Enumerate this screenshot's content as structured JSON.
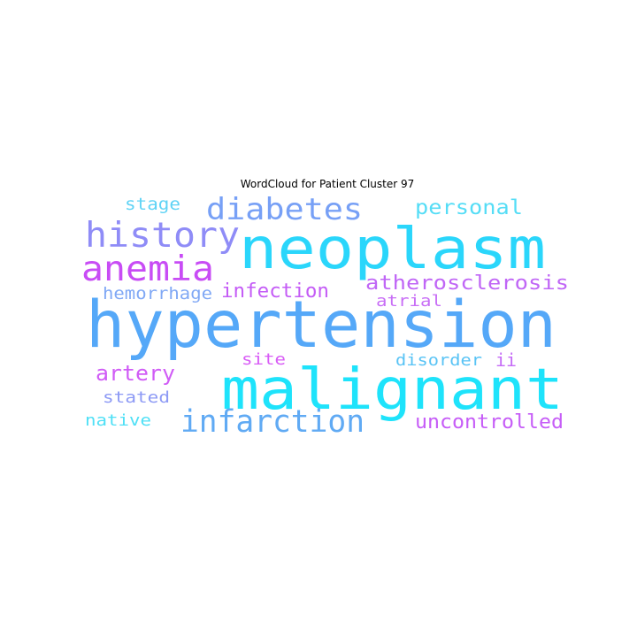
{
  "title": "WordCloud for Patient Cluster 97",
  "words": [
    {
      "text": "hypertension",
      "color": "#55a8f8"
    },
    {
      "text": "neoplasm",
      "color": "#2ad6fb"
    },
    {
      "text": "malignant",
      "color": "#1ee3fb"
    },
    {
      "text": "history",
      "color": "#8f8cf7"
    },
    {
      "text": "diabetes",
      "color": "#77a0f6"
    },
    {
      "text": "anemia",
      "color": "#c84cf5"
    },
    {
      "text": "infarction",
      "color": "#60aaf4"
    },
    {
      "text": "personal",
      "color": "#55ddf6"
    },
    {
      "text": "atherosclerosis",
      "color": "#c066f6"
    },
    {
      "text": "infection",
      "color": "#c45cf6"
    },
    {
      "text": "artery",
      "color": "#d05cf6"
    },
    {
      "text": "uncontrolled",
      "color": "#c65df7"
    },
    {
      "text": "hemorrhage",
      "color": "#80a8f5"
    },
    {
      "text": "stage",
      "color": "#5fd3f5"
    },
    {
      "text": "atrial",
      "color": "#c86ef6"
    },
    {
      "text": "site",
      "color": "#d85cf6"
    },
    {
      "text": "disorder",
      "color": "#58c3f5"
    },
    {
      "text": "ii",
      "color": "#c46af6"
    },
    {
      "text": "stated",
      "color": "#8d9af5"
    },
    {
      "text": "native",
      "color": "#4fe0f6"
    }
  ]
}
